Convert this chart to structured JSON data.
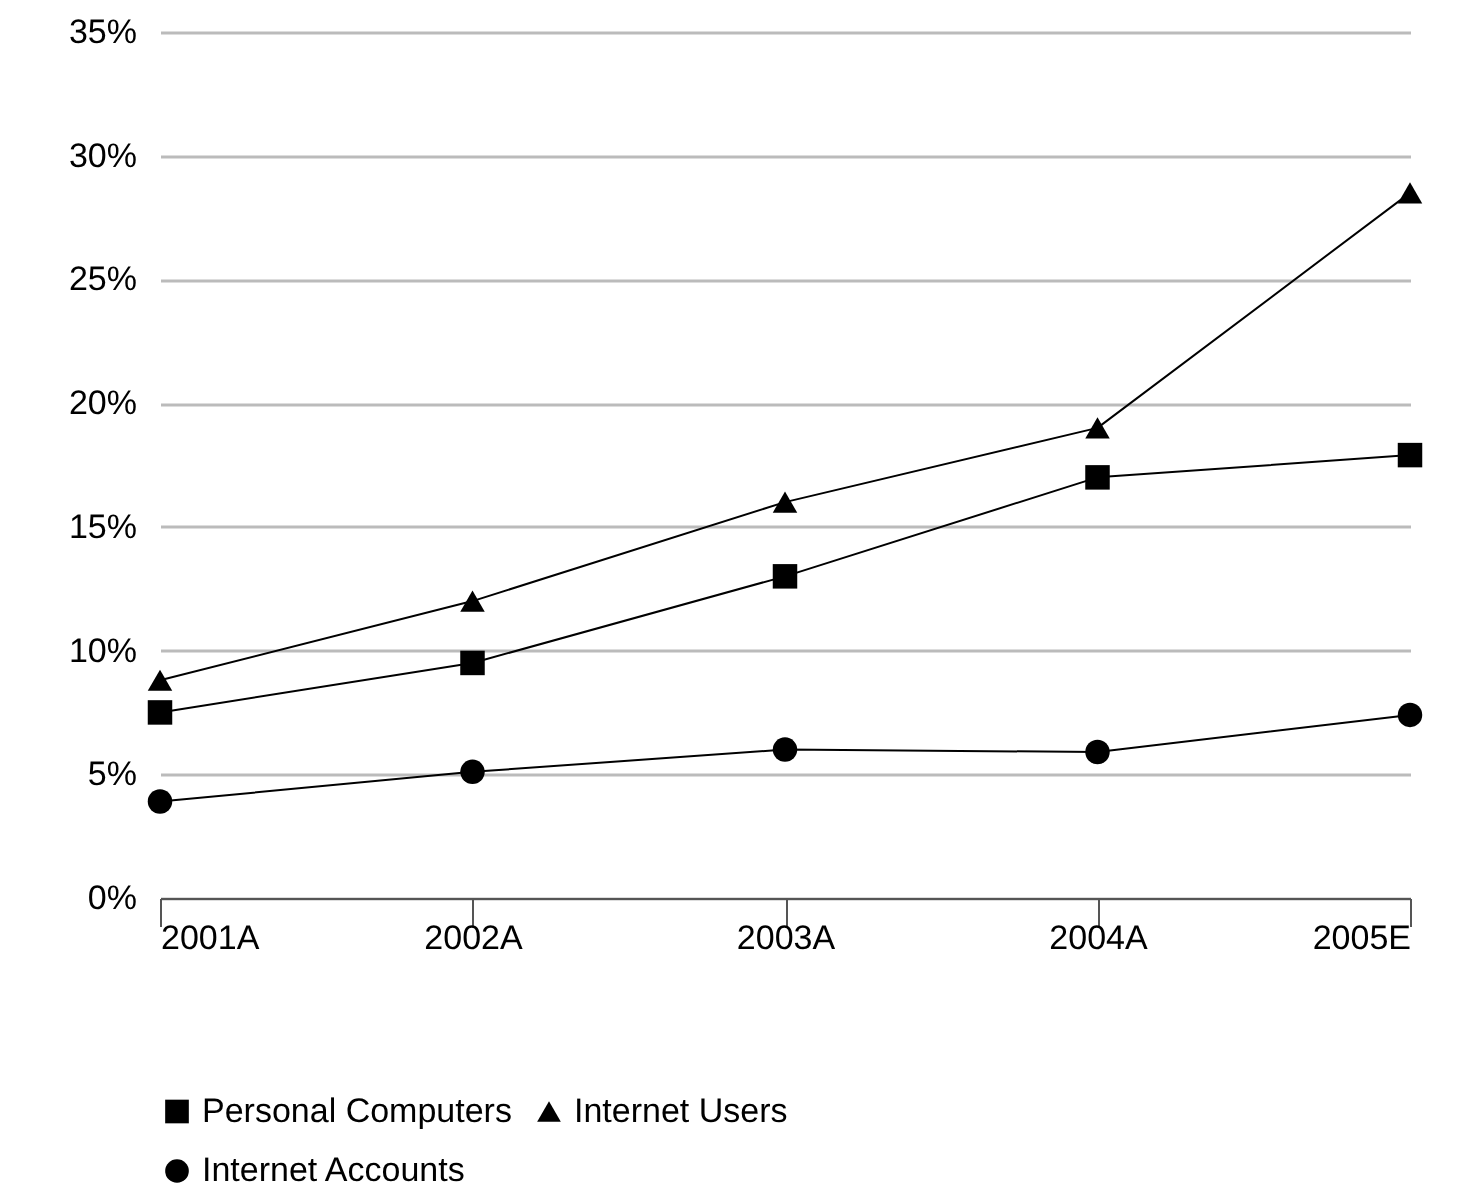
{
  "chart_data": {
    "type": "line",
    "categories": [
      "2001A",
      "2002A",
      "2003A",
      "2004A",
      "2005E"
    ],
    "series": [
      {
        "name": "Personal Computers",
        "color": "#000000",
        "marker": "square",
        "values": [
          7.5,
          9.5,
          13,
          17,
          17.9
        ]
      },
      {
        "name": "Internet Users",
        "color": "#000000",
        "marker": "triangle",
        "values": [
          8.8,
          12,
          16,
          19,
          28.5
        ]
      },
      {
        "name": "Internet Accounts",
        "color": "#000000",
        "marker": "circle",
        "values": [
          3.9,
          5.1,
          6,
          5.9,
          7.4
        ]
      }
    ],
    "ylim": [
      0,
      35
    ],
    "yticks": [
      {
        "value": 0,
        "label": "0%"
      },
      {
        "value": 5,
        "label": "5%"
      },
      {
        "value": 10,
        "label": "10%"
      },
      {
        "value": 15,
        "label": "15%"
      },
      {
        "value": 20,
        "label": "20%"
      },
      {
        "value": 25,
        "label": "25%"
      },
      {
        "value": 30,
        "label": "30%"
      },
      {
        "value": 35,
        "label": "35%"
      }
    ],
    "grid": "y",
    "legend": "bottom",
    "line_style": "solid"
  }
}
